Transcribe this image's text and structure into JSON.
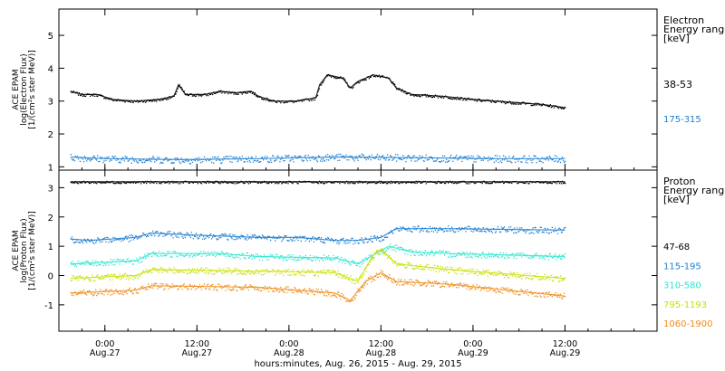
{
  "chart_data": [
    {
      "type": "scatter",
      "panel": "electron",
      "ylabel": [
        "ACE EPAM",
        "log(Electron Flux)",
        "[1/(cm²s ster MeV)]"
      ],
      "ylim": [
        0.9,
        5.8
      ],
      "yticks": [
        1,
        2,
        3,
        4,
        5
      ],
      "legend_title": [
        "Electron",
        "Energy ranges",
        "[keV]"
      ],
      "series": [
        {
          "name": "38-53",
          "color": "#000000",
          "values": [
            [
              -4.5,
              3.3
            ],
            [
              -3,
              3.2
            ],
            [
              -1,
              3.2
            ],
            [
              1,
              3.05
            ],
            [
              4,
              3.0
            ],
            [
              7,
              3.05
            ],
            [
              9,
              3.15
            ],
            [
              9.6,
              3.5
            ],
            [
              10.5,
              3.2
            ],
            [
              13,
              3.2
            ],
            [
              15,
              3.3
            ],
            [
              17,
              3.25
            ],
            [
              19,
              3.3
            ],
            [
              20,
              3.15
            ],
            [
              22,
              3.0
            ],
            [
              25,
              3.0
            ],
            [
              27.5,
              3.1
            ],
            [
              28,
              3.5
            ],
            [
              29,
              3.8
            ],
            [
              31,
              3.7
            ],
            [
              32,
              3.4
            ],
            [
              33,
              3.6
            ],
            [
              35,
              3.8
            ],
            [
              37,
              3.7
            ],
            [
              38,
              3.4
            ],
            [
              40,
              3.2
            ],
            [
              44,
              3.15
            ],
            [
              48,
              3.05
            ],
            [
              51,
              3.0
            ],
            [
              54,
              2.95
            ],
            [
              57,
              2.9
            ],
            [
              60,
              2.8
            ]
          ]
        },
        {
          "name": "175-315",
          "color": "#1f7fd0",
          "values": [
            [
              -4.5,
              1.3
            ],
            [
              0,
              1.25
            ],
            [
              10,
              1.22
            ],
            [
              20,
              1.25
            ],
            [
              30,
              1.3
            ],
            [
              40,
              1.28
            ],
            [
              50,
              1.25
            ],
            [
              60,
              1.25
            ]
          ]
        }
      ]
    },
    {
      "type": "scatter",
      "panel": "proton",
      "ylabel": [
        "ACE EPAM",
        "log(Proton Flux)",
        "[1/(cm²s ster MeV)]"
      ],
      "ylim": [
        -1.9,
        3.6
      ],
      "yticks": [
        -1,
        0,
        1,
        2,
        3
      ],
      "legend_title": [
        "Proton",
        "Energy ranges",
        "[keV]"
      ],
      "series": [
        {
          "name": "47-68",
          "color": "#000000",
          "values": [
            [
              -4.5,
              3.2
            ],
            [
              60,
              3.2
            ]
          ]
        },
        {
          "name": "115-195",
          "color": "#1f7fd0",
          "values": [
            [
              -4.5,
              1.25
            ],
            [
              -2,
              1.2
            ],
            [
              4,
              1.3
            ],
            [
              6,
              1.45
            ],
            [
              10,
              1.4
            ],
            [
              20,
              1.3
            ],
            [
              25,
              1.3
            ],
            [
              30,
              1.2
            ],
            [
              33,
              1.2
            ],
            [
              36,
              1.3
            ],
            [
              38,
              1.6
            ],
            [
              45,
              1.6
            ],
            [
              60,
              1.55
            ]
          ]
        },
        {
          "name": "310-580",
          "color": "#2ee6d0",
          "values": [
            [
              -4.5,
              0.4
            ],
            [
              4,
              0.5
            ],
            [
              6,
              0.75
            ],
            [
              15,
              0.75
            ],
            [
              20,
              0.65
            ],
            [
              30,
              0.6
            ],
            [
              33,
              0.4
            ],
            [
              35,
              0.7
            ],
            [
              37,
              1.0
            ],
            [
              40,
              0.8
            ],
            [
              45,
              0.75
            ],
            [
              60,
              0.65
            ]
          ]
        },
        {
          "name": "795-1193",
          "color": "#c8e000",
          "values": [
            [
              -4.5,
              -0.1
            ],
            [
              4,
              0.0
            ],
            [
              6,
              0.2
            ],
            [
              20,
              0.15
            ],
            [
              30,
              0.1
            ],
            [
              33,
              -0.2
            ],
            [
              35,
              0.7
            ],
            [
              36,
              0.9
            ],
            [
              38,
              0.4
            ],
            [
              45,
              0.2
            ],
            [
              60,
              -0.1
            ]
          ]
        },
        {
          "name": "1060-1900",
          "color": "#f08c18",
          "values": [
            [
              -4.5,
              -0.6
            ],
            [
              4,
              -0.5
            ],
            [
              6,
              -0.35
            ],
            [
              20,
              -0.4
            ],
            [
              30,
              -0.6
            ],
            [
              32,
              -0.85
            ],
            [
              34,
              -0.2
            ],
            [
              36,
              0.1
            ],
            [
              38,
              -0.2
            ],
            [
              45,
              -0.3
            ],
            [
              60,
              -0.7
            ]
          ]
        }
      ]
    }
  ],
  "x_axis": {
    "ticks": [
      {
        "hour": 0,
        "time": "0:00",
        "date": "Aug.27"
      },
      {
        "hour": 12,
        "time": "12:00",
        "date": "Aug.27"
      },
      {
        "hour": 24,
        "time": "0:00",
        "date": "Aug.28"
      },
      {
        "hour": 36,
        "time": "12:00",
        "date": "Aug.28"
      },
      {
        "hour": 48,
        "time": "0:00",
        "date": "Aug.29"
      },
      {
        "hour": 60,
        "time": "12:00",
        "date": "Aug.29"
      }
    ],
    "label": "hours:minutes, Aug. 26, 2015 - Aug. 29, 2015",
    "xlim": [
      -6,
      72
    ]
  }
}
